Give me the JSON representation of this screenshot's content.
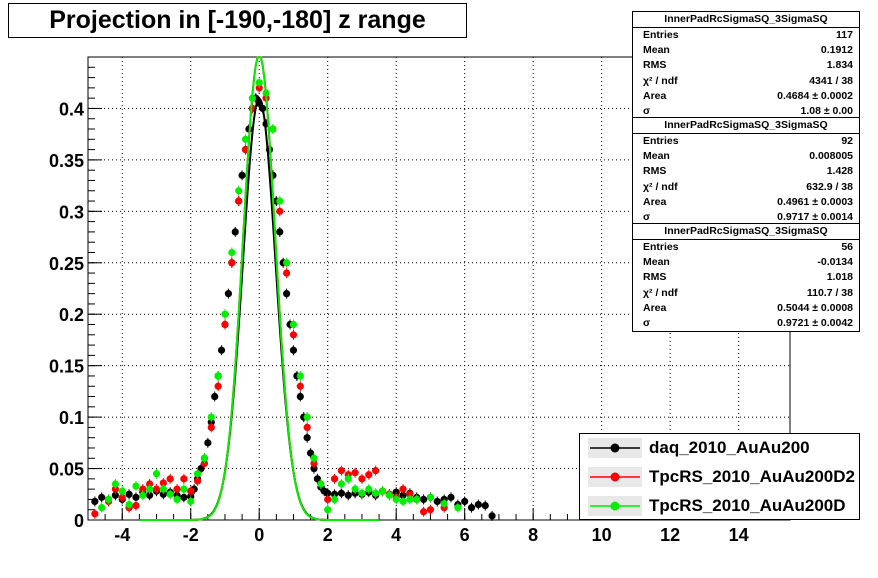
{
  "title": "Projection in [-190,-180] z range",
  "chart_data": {
    "type": "scatter",
    "xlim": [
      -5,
      15.5
    ],
    "ylim": [
      0,
      0.45
    ],
    "x_ticks": [
      -4,
      -2,
      0,
      2,
      4,
      6,
      8,
      10,
      12,
      14
    ],
    "x_tick_labels": [
      "-4",
      "-2",
      "0",
      "2",
      "4",
      "6",
      "8",
      "10",
      "12",
      "14"
    ],
    "y_ticks": [
      0,
      0.05,
      0.1,
      0.15,
      0.2,
      0.25,
      0.3,
      0.35,
      0.4
    ],
    "y_tick_labels": [
      "0",
      "0.05",
      "0.1",
      "0.15",
      "0.2",
      "0.25",
      "0.3",
      "0.35",
      "0.4"
    ],
    "grid": true,
    "legend_position": "bottom-right",
    "series": [
      {
        "name": "daq_2010_AuAu200",
        "color": "#000000",
        "fit": {
          "peak": 0.41,
          "sigma": 0.48
        },
        "points": [
          [
            -4.8,
            0.018
          ],
          [
            -4.6,
            0.022
          ],
          [
            -4.4,
            0.02
          ],
          [
            -4.2,
            0.024
          ],
          [
            -4.0,
            0.02
          ],
          [
            -3.8,
            0.025
          ],
          [
            -3.6,
            0.022
          ],
          [
            -3.4,
            0.027
          ],
          [
            -3.2,
            0.024
          ],
          [
            -3.0,
            0.028
          ],
          [
            -2.8,
            0.025
          ],
          [
            -2.6,
            0.027
          ],
          [
            -2.4,
            0.024
          ],
          [
            -2.2,
            0.022
          ],
          [
            -2.0,
            0.023
          ],
          [
            -1.9,
            0.03
          ],
          [
            -1.8,
            0.04
          ],
          [
            -1.7,
            0.05
          ],
          [
            -1.6,
            0.06
          ],
          [
            -1.5,
            0.075
          ],
          [
            -1.4,
            0.095
          ],
          [
            -1.3,
            0.12
          ],
          [
            -1.2,
            0.14
          ],
          [
            -1.1,
            0.165
          ],
          [
            -1.0,
            0.19
          ],
          [
            -0.9,
            0.22
          ],
          [
            -0.8,
            0.25
          ],
          [
            -0.7,
            0.28
          ],
          [
            -0.6,
            0.31
          ],
          [
            -0.5,
            0.335
          ],
          [
            -0.4,
            0.36
          ],
          [
            -0.3,
            0.38
          ],
          [
            -0.2,
            0.4
          ],
          [
            -0.1,
            0.41
          ],
          [
            0.0,
            0.405
          ],
          [
            0.1,
            0.4
          ],
          [
            0.2,
            0.385
          ],
          [
            0.3,
            0.36
          ],
          [
            0.4,
            0.335
          ],
          [
            0.5,
            0.31
          ],
          [
            0.6,
            0.28
          ],
          [
            0.7,
            0.25
          ],
          [
            0.8,
            0.22
          ],
          [
            0.9,
            0.19
          ],
          [
            1.0,
            0.165
          ],
          [
            1.1,
            0.14
          ],
          [
            1.2,
            0.12
          ],
          [
            1.3,
            0.1
          ],
          [
            1.4,
            0.08
          ],
          [
            1.5,
            0.065
          ],
          [
            1.6,
            0.05
          ],
          [
            1.7,
            0.04
          ],
          [
            1.8,
            0.032
          ],
          [
            1.9,
            0.028
          ],
          [
            2.0,
            0.026
          ],
          [
            2.2,
            0.025
          ],
          [
            2.4,
            0.026
          ],
          [
            2.6,
            0.024
          ],
          [
            2.8,
            0.026
          ],
          [
            3.0,
            0.025
          ],
          [
            3.2,
            0.027
          ],
          [
            3.4,
            0.024
          ],
          [
            3.6,
            0.028
          ],
          [
            3.8,
            0.025
          ],
          [
            4.0,
            0.027
          ],
          [
            4.2,
            0.024
          ],
          [
            4.4,
            0.026
          ],
          [
            4.6,
            0.022
          ],
          [
            4.8,
            0.02
          ],
          [
            5.0,
            0.022
          ],
          [
            5.2,
            0.018
          ],
          [
            5.4,
            0.02
          ],
          [
            5.6,
            0.022
          ],
          [
            5.8,
            0.015
          ],
          [
            6.0,
            0.018
          ],
          [
            6.2,
            0.012
          ],
          [
            6.4,
            0.015
          ],
          [
            6.6,
            0.014
          ],
          [
            6.8,
            0.004
          ]
        ]
      },
      {
        "name": "TpcRS_2010_AuAu200D2",
        "color": "#ff0000",
        "fit": {
          "peak": 0.452,
          "sigma": 0.47
        },
        "points": [
          [
            -4.8,
            0.006
          ],
          [
            -4.4,
            0.018
          ],
          [
            -4.2,
            0.03
          ],
          [
            -4.0,
            0.022
          ],
          [
            -3.8,
            0.012
          ],
          [
            -3.6,
            0.014
          ],
          [
            -3.4,
            0.03
          ],
          [
            -3.2,
            0.035
          ],
          [
            -3.0,
            0.03
          ],
          [
            -2.8,
            0.036
          ],
          [
            -2.6,
            0.04
          ],
          [
            -2.4,
            0.03
          ],
          [
            -2.2,
            0.04
          ],
          [
            -2.0,
            0.028
          ],
          [
            -1.8,
            0.038
          ],
          [
            -1.6,
            0.055
          ],
          [
            -1.4,
            0.09
          ],
          [
            -1.2,
            0.13
          ],
          [
            -1.0,
            0.19
          ],
          [
            -0.8,
            0.25
          ],
          [
            -0.6,
            0.31
          ],
          [
            -0.4,
            0.36
          ],
          [
            -0.2,
            0.4
          ],
          [
            0.0,
            0.42
          ],
          [
            0.2,
            0.41
          ],
          [
            0.4,
            0.38
          ],
          [
            0.6,
            0.3
          ],
          [
            0.8,
            0.24
          ],
          [
            1.0,
            0.18
          ],
          [
            1.2,
            0.13
          ],
          [
            1.4,
            0.09
          ],
          [
            1.6,
            0.055
          ],
          [
            1.8,
            0.035
          ],
          [
            2.0,
            0.02
          ],
          [
            2.2,
            0.04
          ],
          [
            2.4,
            0.048
          ],
          [
            2.6,
            0.044
          ],
          [
            2.8,
            0.046
          ],
          [
            3.0,
            0.04
          ],
          [
            3.2,
            0.044
          ],
          [
            3.4,
            0.048
          ],
          [
            3.6,
            0.028
          ],
          [
            3.8,
            0.025
          ],
          [
            4.0,
            0.022
          ],
          [
            4.2,
            0.03
          ],
          [
            4.4,
            0.025
          ],
          [
            4.6,
            0.02
          ],
          [
            4.8,
            0.008
          ],
          [
            5.0,
            0.01
          ],
          [
            5.4,
            0.012
          ]
        ]
      },
      {
        "name": "TpcRS_2010_AuAu200D",
        "color": "#00ee00",
        "fit": {
          "peak": 0.452,
          "sigma": 0.47
        },
        "points": [
          [
            -4.6,
            0.012
          ],
          [
            -4.4,
            0.02
          ],
          [
            -4.2,
            0.035
          ],
          [
            -4.0,
            0.028
          ],
          [
            -3.8,
            0.015
          ],
          [
            -3.6,
            0.033
          ],
          [
            -3.4,
            0.024
          ],
          [
            -3.2,
            0.03
          ],
          [
            -3.0,
            0.045
          ],
          [
            -2.8,
            0.03
          ],
          [
            -2.6,
            0.025
          ],
          [
            -2.4,
            0.02
          ],
          [
            -2.2,
            0.03
          ],
          [
            -2.0,
            0.018
          ],
          [
            -1.8,
            0.045
          ],
          [
            -1.6,
            0.06
          ],
          [
            -1.4,
            0.1
          ],
          [
            -1.2,
            0.14
          ],
          [
            -1.0,
            0.2
          ],
          [
            -0.8,
            0.26
          ],
          [
            -0.6,
            0.32
          ],
          [
            -0.4,
            0.37
          ],
          [
            -0.2,
            0.41
          ],
          [
            0.0,
            0.425
          ],
          [
            0.2,
            0.415
          ],
          [
            0.4,
            0.38
          ],
          [
            0.6,
            0.31
          ],
          [
            0.8,
            0.25
          ],
          [
            1.0,
            0.19
          ],
          [
            1.2,
            0.14
          ],
          [
            1.4,
            0.1
          ],
          [
            1.6,
            0.06
          ],
          [
            1.8,
            0.035
          ],
          [
            2.0,
            0.01
          ],
          [
            2.2,
            0.02
          ],
          [
            2.4,
            0.035
          ],
          [
            2.6,
            0.04
          ],
          [
            2.8,
            0.03
          ],
          [
            3.0,
            0.026
          ],
          [
            3.2,
            0.03
          ],
          [
            3.4,
            0.026
          ],
          [
            3.6,
            0.028
          ],
          [
            3.8,
            0.024
          ],
          [
            4.0,
            0.02
          ],
          [
            4.2,
            0.018
          ],
          [
            4.4,
            0.02
          ],
          [
            4.6,
            0.02
          ],
          [
            5.0,
            0.022
          ],
          [
            5.4,
            0.016
          ],
          [
            5.8,
            0.012
          ]
        ]
      }
    ]
  },
  "stats": [
    {
      "header": "InnerPadRcSigmaSQ_3SigmaSQ",
      "rows": [
        {
          "label": "Entries",
          "value": "117"
        },
        {
          "label": "Mean",
          "value": "0.1912"
        },
        {
          "label": "RMS",
          "value": "1.834"
        },
        {
          "label": "χ² / ndf",
          "value": "4341 / 38"
        },
        {
          "label": "Area",
          "value": "0.4684 ± 0.0002"
        },
        {
          "label": "σ",
          "value": "1.08 ± 0.00"
        }
      ]
    },
    {
      "header": "InnerPadRcSigmaSQ_3SigmaSQ",
      "rows": [
        {
          "label": "Entries",
          "value": "92"
        },
        {
          "label": "Mean",
          "value": "0.008005"
        },
        {
          "label": "RMS",
          "value": "1.428"
        },
        {
          "label": "χ² / ndf",
          "value": "632.9 / 38"
        },
        {
          "label": "Area",
          "value": "0.4961 ± 0.0003"
        },
        {
          "label": "σ",
          "value": "0.9717 ± 0.0014"
        }
      ]
    },
    {
      "header": "InnerPadRcSigmaSQ_3SigmaSQ",
      "rows": [
        {
          "label": "Entries",
          "value": "56"
        },
        {
          "label": "Mean",
          "value": "-0.0134"
        },
        {
          "label": "RMS",
          "value": "1.018"
        },
        {
          "label": "χ² / ndf",
          "value": "110.7 / 38"
        },
        {
          "label": "Area",
          "value": "0.5044 ± 0.0008"
        },
        {
          "label": "σ",
          "value": "0.9721 ± 0.0042"
        }
      ]
    }
  ],
  "legend": [
    {
      "label": "daq_2010_AuAu200",
      "color": "#000000"
    },
    {
      "label": "TpcRS_2010_AuAu200D2",
      "color": "#ff0000"
    },
    {
      "label": "TpcRS_2010_AuAu200D",
      "color": "#00ee00"
    }
  ]
}
